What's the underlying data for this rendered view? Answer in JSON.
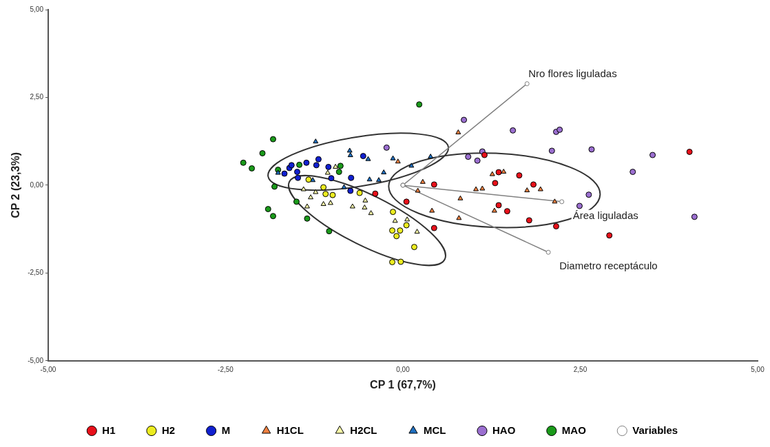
{
  "chart_data": {
    "type": "scatter",
    "xlabel": "CP 1 (67,7%)",
    "ylabel": "CP 2 (23,3%)",
    "xlim": [
      -5,
      5
    ],
    "ylim": [
      -5,
      5
    ],
    "xticks": [
      {
        "value": -5,
        "label": "-5,00"
      },
      {
        "value": -2.5,
        "label": "-2,50"
      },
      {
        "value": 0,
        "label": "0,00"
      },
      {
        "value": 2.5,
        "label": "2,50"
      },
      {
        "value": 5,
        "label": "5,00"
      }
    ],
    "yticks": [
      {
        "value": -5,
        "label": "-5,00"
      },
      {
        "value": -2.5,
        "label": "-2,50"
      },
      {
        "value": 0,
        "label": "0,00"
      },
      {
        "value": 2.5,
        "label": "2,50"
      },
      {
        "value": 5,
        "label": "5,00"
      }
    ],
    "grid": false,
    "legend": "bottom",
    "annotations": [
      {
        "text": "Nro flores liguladas",
        "x": 1.75,
        "y": 2.89
      },
      {
        "text": "Área liguladas",
        "x": 2.24,
        "y": -0.47
      },
      {
        "text": "Diametro receptáculo",
        "x": 2.05,
        "y": -1.91
      }
    ],
    "series": [
      {
        "name": "H1",
        "type": "scatter",
        "marker": "circle",
        "color": "#e8101a",
        "x": [
          -0.39,
          0.05,
          0.44,
          0.44,
          1.15,
          1.35,
          1.3,
          1.64,
          1.84,
          1.35,
          1.47,
          1.78,
          2.16,
          4.04,
          2.91
        ],
        "values": [
          -0.24,
          -0.47,
          0.02,
          -1.22,
          0.86,
          0.37,
          0.06,
          0.28,
          0.02,
          -0.57,
          -0.74,
          -1.0,
          -1.17,
          0.95,
          -1.43
        ]
      },
      {
        "name": "H2",
        "type": "scatter",
        "marker": "circle",
        "color": "#ecec20",
        "x": [
          -1.33,
          -1.12,
          -1.09,
          -0.99,
          -0.61,
          -0.14,
          -0.15,
          -0.04,
          -0.09,
          -0.15,
          -0.03,
          0.05,
          0.16
        ],
        "values": [
          0.16,
          -0.06,
          -0.25,
          -0.28,
          -0.22,
          -0.76,
          -1.29,
          -1.29,
          -1.45,
          -2.19,
          -2.18,
          -1.14,
          -1.76
        ]
      },
      {
        "name": "M",
        "type": "scatter",
        "marker": "circle",
        "color": "#1020d0",
        "x": [
          -1.67,
          -1.6,
          -1.57,
          -1.49,
          -1.48,
          -1.36,
          -1.19,
          -1.22,
          -1.05,
          -1.01,
          -0.73,
          -0.74,
          -0.56
        ],
        "values": [
          0.33,
          0.49,
          0.57,
          0.38,
          0.21,
          0.64,
          0.74,
          0.57,
          0.52,
          0.2,
          0.21,
          -0.16,
          0.83
        ]
      },
      {
        "name": "H1CL",
        "type": "scatter",
        "marker": "triangle",
        "color": "#f08040",
        "x": [
          0.78,
          -0.07,
          0.28,
          0.21,
          0.81,
          0.41,
          0.79,
          1.26,
          1.42,
          1.03,
          1.12,
          1.75,
          1.94,
          2.14,
          1.29
        ],
        "values": [
          1.5,
          0.67,
          0.09,
          -0.16,
          -0.38,
          -0.73,
          -0.94,
          0.31,
          0.38,
          -0.12,
          -0.1,
          -0.15,
          -0.12,
          -0.47,
          -0.73
        ]
      },
      {
        "name": "H2CL",
        "type": "scatter",
        "marker": "triangle",
        "color": "#fafaa8",
        "x": [
          -0.95,
          -1.06,
          -1.4,
          -1.3,
          -1.23,
          -1.35,
          -1.12,
          -1.02,
          -0.71,
          -0.53,
          -0.54,
          -0.45,
          -0.11,
          0.06,
          0.2
        ],
        "values": [
          0.52,
          0.35,
          -0.12,
          -0.35,
          -0.2,
          -0.61,
          -0.54,
          -0.51,
          -0.61,
          -0.44,
          -0.64,
          -0.8,
          -1.02,
          -0.98,
          -1.33
        ]
      },
      {
        "name": "MCL",
        "type": "scatter",
        "marker": "triangle",
        "color": "#1f6fc0",
        "x": [
          -1.23,
          -1.76,
          -1.27,
          -0.75,
          -0.74,
          -0.49,
          -0.14,
          -0.27,
          -0.47,
          -0.34,
          -0.83,
          0.12,
          0.39
        ],
        "values": [
          1.24,
          0.35,
          0.14,
          0.98,
          0.85,
          0.74,
          0.76,
          0.36,
          0.16,
          0.14,
          -0.06,
          0.55,
          0.81
        ]
      },
      {
        "name": "HAO",
        "type": "scatter",
        "marker": "circle",
        "color": "#9b6fd0",
        "x": [
          0.86,
          -0.23,
          1.55,
          2.16,
          2.21,
          2.1,
          0.92,
          1.12,
          1.05,
          2.66,
          3.52,
          3.24,
          2.62,
          2.49,
          4.11
        ],
        "values": [
          1.86,
          1.07,
          1.56,
          1.52,
          1.58,
          0.98,
          0.81,
          0.96,
          0.7,
          1.02,
          0.86,
          0.38,
          -0.27,
          -0.59,
          -0.9
        ]
      },
      {
        "name": "MAO",
        "type": "scatter",
        "marker": "circle",
        "color": "#1a9a1a",
        "x": [
          -1.83,
          -1.98,
          -2.25,
          -2.13,
          -1.76,
          -1.46,
          -0.88,
          -0.9,
          -1.81,
          -1.5,
          -1.9,
          -1.83,
          -1.35,
          -1.04,
          0.23
        ],
        "values": [
          1.31,
          0.91,
          0.64,
          0.48,
          0.44,
          0.58,
          0.55,
          0.38,
          -0.04,
          -0.47,
          -0.68,
          -0.88,
          -0.95,
          -1.31,
          2.3
        ]
      },
      {
        "name": "Variables",
        "type": "line",
        "marker": "circle",
        "color": "#808080",
        "x": [
          0,
          1.75,
          null,
          0,
          2.24,
          null,
          0,
          2.05
        ],
        "values": [
          0,
          2.89,
          null,
          0,
          -0.47,
          null,
          0,
          -1.91
        ]
      }
    ]
  }
}
